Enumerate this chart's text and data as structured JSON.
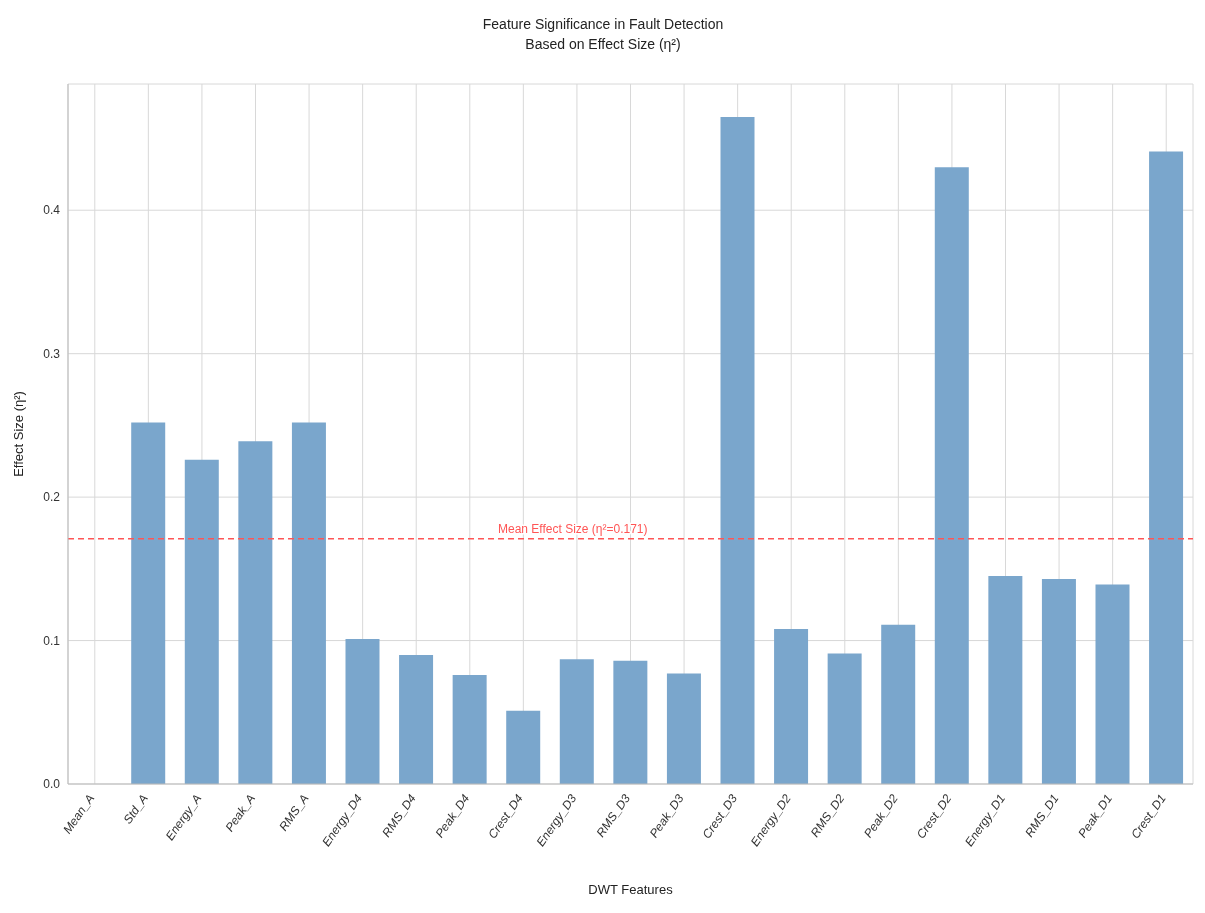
{
  "chart_data": {
    "type": "bar",
    "title": "Feature Significance in Fault Detection",
    "subtitle": "Based on Effect Size (η²)",
    "xlabel": "DWT Features",
    "ylabel": "Effect Size (η²)",
    "categories": [
      "Mean_A",
      "Std_A",
      "Energy_A",
      "Peak_A",
      "RMS_A",
      "Energy_D4",
      "RMS_D4",
      "Peak_D4",
      "Crest_D4",
      "Energy_D3",
      "RMS_D3",
      "Peak_D3",
      "Crest_D3",
      "Energy_D2",
      "RMS_D2",
      "Peak_D2",
      "Crest_D2",
      "Energy_D1",
      "RMS_D1",
      "Peak_D1",
      "Crest_D1"
    ],
    "values": [
      0,
      0.252,
      0.226,
      0.239,
      0.252,
      0.101,
      0.09,
      0.076,
      0.051,
      0.087,
      0.086,
      0.077,
      0.465,
      0.108,
      0.091,
      0.111,
      0.43,
      0.145,
      0.143,
      0.139,
      0.441
    ],
    "color": "#7aa6cc",
    "ylim": [
      0,
      0.488
    ],
    "yticks": [
      {
        "value": 0,
        "label": "0.0"
      },
      {
        "value": 0.1,
        "label": "0.1"
      },
      {
        "value": 0.2,
        "label": "0.2"
      },
      {
        "value": 0.3,
        "label": "0.3"
      },
      {
        "value": 0.4,
        "label": "0.4"
      }
    ],
    "grid": true,
    "ref_lines": [
      {
        "axis": "y",
        "value": 0.171,
        "label": "Mean Effect Size (η²=0.171)",
        "color": "#ff5555",
        "line_style": "dashed"
      }
    ]
  }
}
